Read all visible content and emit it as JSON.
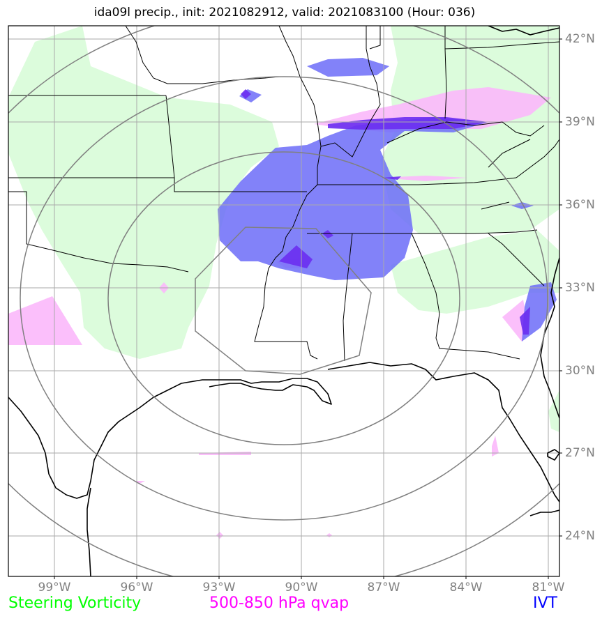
{
  "title": "ida09l precip., init: 2021082912, valid: 2021083100 (Hour: 036)",
  "latitude_labels": [
    "42°N",
    "39°N",
    "36°N",
    "33°N",
    "30°N",
    "27°N",
    "24°N"
  ],
  "longitude_labels": [
    "99°W",
    "96°W",
    "93°W",
    "90°W",
    "87°W",
    "84°W",
    "81°W"
  ],
  "legend": {
    "vorticity": {
      "label": "Steering Vorticity",
      "color": "#00ff00"
    },
    "qvap": {
      "label": "500-850 hPa qvap",
      "color": "#ff00ff"
    },
    "ivt": {
      "label": "IVT",
      "color": "#0000ff"
    }
  },
  "colors": {
    "vorticity_fill": "#dcfcdc",
    "qvap_fill": "#fbb8fb",
    "ivt_fill": "#6c6cf8",
    "ivt_core": "#6a2ef0",
    "grid": "#aaaaaa",
    "range_rings": "#808080",
    "coast": "#000000"
  }
}
